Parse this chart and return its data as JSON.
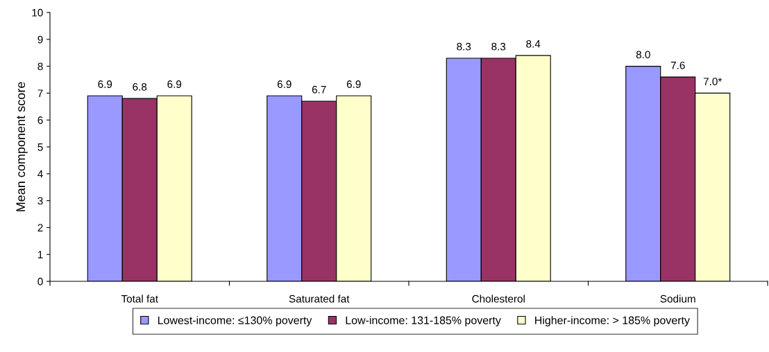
{
  "chart_data": {
    "type": "bar",
    "ylabel": "Mean component score",
    "categories": [
      "Total fat",
      "Saturated fat",
      "Cholesterol",
      "Sodium"
    ],
    "series": [
      {
        "name": "Lowest-income: ≤130% poverty",
        "color": "#9999ff",
        "values": [
          6.9,
          6.9,
          8.3,
          8.0
        ],
        "value_labels": [
          "6.9",
          "6.9",
          "8.3",
          "8.0"
        ]
      },
      {
        "name": "Low-income: 131-185% poverty",
        "color": "#993366",
        "values": [
          6.8,
          6.7,
          8.3,
          7.6
        ],
        "value_labels": [
          "6.8",
          "6.7",
          "8.3",
          "7.6"
        ]
      },
      {
        "name": "Higher-income: > 185% poverty",
        "color": "#ffffcc",
        "values": [
          6.9,
          6.9,
          8.4,
          7.0
        ],
        "value_labels": [
          "6.9",
          "6.9",
          "8.4",
          "7.0*"
        ]
      }
    ],
    "ylim": [
      0,
      10
    ],
    "yticks": [
      0,
      1,
      2,
      3,
      4,
      5,
      6,
      7,
      8,
      9,
      10
    ],
    "grid": false,
    "legend": "bottom"
  }
}
